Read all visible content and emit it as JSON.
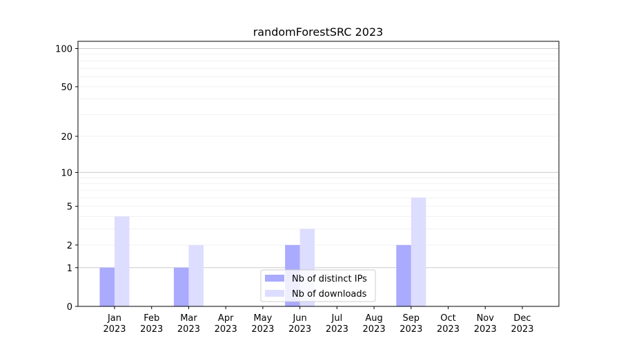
{
  "chart_data": {
    "type": "bar",
    "title": "randomForestSRC 2023",
    "xlabel": "",
    "ylabel": "",
    "yscale": "log(1+y)",
    "ylim": [
      0,
      114
    ],
    "yticks": [
      0,
      1,
      2,
      5,
      10,
      20,
      50,
      100
    ],
    "grid": true,
    "legend_position": "bottom-center",
    "categories": [
      "Jan\n2023",
      "Feb\n2023",
      "Mar\n2023",
      "Apr\n2023",
      "May\n2023",
      "Jun\n2023",
      "Jul\n2023",
      "Aug\n2023",
      "Sep\n2023",
      "Oct\n2023",
      "Nov\n2023",
      "Dec\n2023"
    ],
    "series": [
      {
        "name": "Nb of distinct IPs",
        "color": "#aaaaff",
        "values": [
          1,
          0,
          1,
          0,
          0,
          2,
          0,
          0,
          2,
          0,
          0,
          0
        ]
      },
      {
        "name": "Nb of downloads",
        "color": "#ddddff",
        "values": [
          4,
          0,
          2,
          0,
          0,
          3,
          0,
          0,
          6,
          0,
          0,
          0
        ]
      }
    ]
  }
}
